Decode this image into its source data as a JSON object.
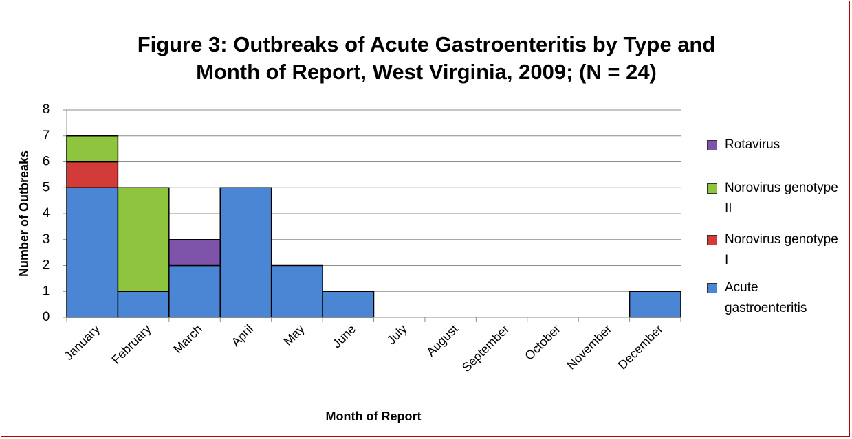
{
  "chart_data": {
    "type": "stacked_bar",
    "title": [
      "Figure 3: Outbreaks of Acute Gastroenteritis by Type and",
      "Month of Report, West Virginia, 2009; (N = 24)"
    ],
    "x_label": "Month of Report",
    "y_label": "Number of Outbreaks",
    "categories": [
      "January",
      "February",
      "March",
      "April",
      "May",
      "June",
      "July",
      "August",
      "September",
      "October",
      "November",
      "December"
    ],
    "series": [
      {
        "name": "Acute gastroenteritis",
        "color": "#4a86d4",
        "values": [
          5,
          1,
          2,
          5,
          2,
          1,
          0,
          0,
          0,
          0,
          0,
          1
        ]
      },
      {
        "name": "Norovirus genotype I",
        "color": "#d23b37",
        "values": [
          1,
          0,
          0,
          0,
          0,
          0,
          0,
          0,
          0,
          0,
          0,
          0
        ]
      },
      {
        "name": "Norovirus genotype II",
        "color": "#8fc43e",
        "values": [
          1,
          4,
          0,
          0,
          0,
          0,
          0,
          0,
          0,
          0,
          0,
          0
        ]
      },
      {
        "name": "Rotavirus",
        "color": "#7d54aa",
        "values": [
          0,
          0,
          1,
          0,
          0,
          0,
          0,
          0,
          0,
          0,
          0,
          0
        ]
      }
    ],
    "ylim": [
      0,
      8
    ],
    "yticks": [
      0,
      1,
      2,
      3,
      4,
      5,
      6,
      7,
      8
    ],
    "grid": true,
    "legend": "right"
  }
}
